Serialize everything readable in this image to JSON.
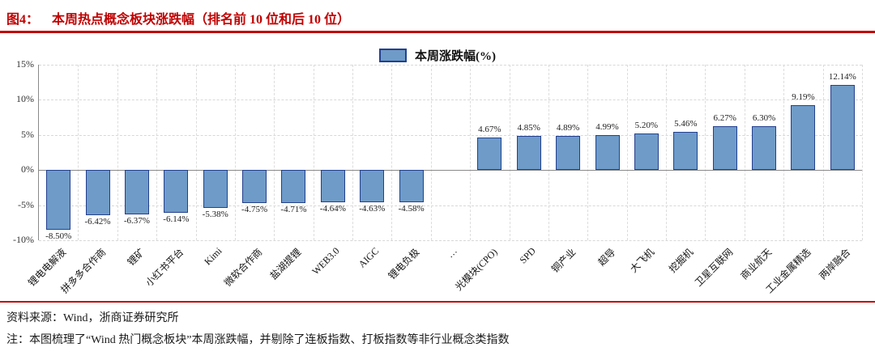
{
  "header": {
    "figure_label": "图4：",
    "title": "本周热点概念板块涨跌幅（排名前 10 位和后 10 位）"
  },
  "legend": {
    "label": "本周涨跌幅(%)"
  },
  "footer": {
    "source": "资料来源：Wind，浙商证券研究所",
    "note": "注：本图梳理了“Wind 热门概念板块”本周涨跌幅，并剔除了连板指数、打板指数等非行业概念类指数"
  },
  "colors": {
    "title_red": "#c00000",
    "bar_fill": "#6e9bc8",
    "bar_border": "#24408f",
    "grid": "#d8d8d8",
    "axis": "#8a8a8a"
  },
  "chart_data": {
    "type": "bar",
    "title": "本周涨跌幅(%)",
    "legend_position": "top-center",
    "grid": true,
    "ylim": [
      -10,
      15
    ],
    "yticks": [
      15,
      10,
      5,
      0,
      -5,
      -10
    ],
    "ytick_labels": [
      "15%",
      "10%",
      "5%",
      "0%",
      "-5%",
      "-10%"
    ],
    "categories": [
      "锂电电解液",
      "拼多多合作商",
      "锂矿",
      "小红书平台",
      "Kimi",
      "微软合作商",
      "盐湖提锂",
      "WEB3.0",
      "AIGC",
      "锂电负极",
      "…",
      "光模块(CPO)",
      "SPD",
      "铜产业",
      "超导",
      "大飞机",
      "挖掘机",
      "卫星互联网",
      "商业航天",
      "工业金属精选",
      "两岸融合"
    ],
    "values": [
      -8.5,
      -6.42,
      -6.37,
      -6.14,
      -5.38,
      -4.75,
      -4.71,
      -4.64,
      -4.63,
      -4.58,
      null,
      4.67,
      4.85,
      4.89,
      4.99,
      5.2,
      5.46,
      6.27,
      6.3,
      9.19,
      12.14
    ],
    "value_labels": [
      "-8.50%",
      "-6.42%",
      "-6.37%",
      "-6.14%",
      "-5.38%",
      "-4.75%",
      "-4.71%",
      "-4.64%",
      "-4.63%",
      "-4.58%",
      "",
      "4.67%",
      "4.85%",
      "4.89%",
      "4.99%",
      "5.20%",
      "5.46%",
      "6.27%",
      "6.30%",
      "9.19%",
      "12.14%"
    ]
  }
}
